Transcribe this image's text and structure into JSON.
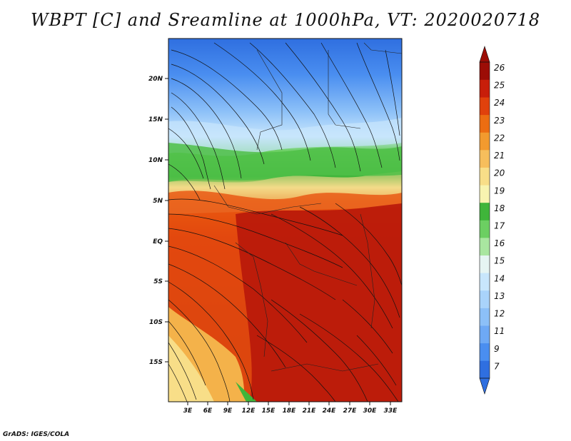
{
  "title": "WBPT [C] and Sreamline at 1000hPa, VT: 2020020718",
  "credit": "GrADS: IGES/COLA",
  "lat_ticks": [
    "20N",
    "15N",
    "10N",
    "5N",
    "EQ",
    "5S",
    "10S",
    "15S"
  ],
  "lon_ticks": [
    "3E",
    "6E",
    "9E",
    "12E",
    "15E",
    "18E",
    "21E",
    "24E",
    "27E",
    "30E",
    "33E"
  ],
  "colorbar": {
    "labels": [
      "7",
      "9",
      "11",
      "12",
      "13",
      "14",
      "15",
      "16",
      "17",
      "18",
      "19",
      "20",
      "21",
      "22",
      "23",
      "24",
      "25",
      "26"
    ],
    "colors": [
      "#2f6fe0",
      "#4a8ef0",
      "#6ea9f5",
      "#8cc0f8",
      "#a9d3fb",
      "#c8e6fc",
      "#e6f5f3",
      "#a9e6a0",
      "#6ccf62",
      "#3fb53a",
      "#f8f4b0",
      "#f8de88",
      "#f6be5c",
      "#f29a2e",
      "#ec6d12",
      "#e0410c",
      "#c81e0a",
      "#9c0d06"
    ]
  }
}
